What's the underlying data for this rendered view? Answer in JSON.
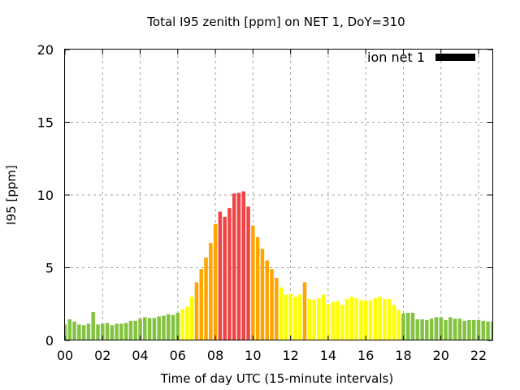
{
  "chart_data": {
    "type": "bar",
    "title": "Total I95 zenith [ppm] on NET 1, DoY=310",
    "xlabel": "Time of day UTC (15-minute intervals)",
    "ylabel": "I95 [ppm]",
    "xlim": [
      0,
      22.75
    ],
    "ylim": [
      0,
      20
    ],
    "grid": true,
    "x_ticks": [
      0,
      2,
      4,
      6,
      8,
      10,
      12,
      14,
      16,
      18,
      20,
      22
    ],
    "x_tick_labels": [
      "00",
      "02",
      "04",
      "06",
      "08",
      "10",
      "12",
      "14",
      "16",
      "18",
      "20",
      "22"
    ],
    "y_ticks": [
      0,
      5,
      10,
      15,
      20
    ],
    "y_tick_labels": [
      "0",
      "5",
      "10",
      "15",
      "20"
    ],
    "legend": {
      "label": "ion net 1",
      "position": "top-right",
      "swatch_color": "#000000"
    },
    "interval_hours": 0.25,
    "series": [
      {
        "name": "ion net 1",
        "values": [
          1.1,
          1.45,
          1.3,
          1.1,
          1.05,
          1.15,
          1.95,
          1.1,
          1.15,
          1.2,
          1.05,
          1.15,
          1.15,
          1.2,
          1.35,
          1.35,
          1.5,
          1.6,
          1.55,
          1.55,
          1.65,
          1.7,
          1.8,
          1.75,
          1.9,
          2.15,
          2.3,
          3.0,
          4.0,
          4.9,
          5.7,
          6.7,
          8.0,
          8.85,
          8.5,
          9.1,
          10.1,
          10.15,
          10.25,
          9.2,
          7.9,
          7.1,
          6.3,
          5.5,
          4.9,
          4.3,
          3.65,
          3.15,
          3.2,
          3.0,
          3.15,
          4.0,
          2.85,
          2.8,
          2.9,
          3.15,
          2.5,
          2.65,
          2.7,
          2.45,
          2.85,
          3.0,
          2.9,
          2.75,
          2.75,
          2.75,
          2.9,
          3.0,
          2.85,
          2.85,
          2.45,
          2.1,
          1.85,
          1.9,
          1.9,
          1.45,
          1.45,
          1.4,
          1.5,
          1.6,
          1.6,
          1.4,
          1.6,
          1.5,
          1.5,
          1.35,
          1.4,
          1.4,
          1.4,
          1.35,
          1.3,
          1.3
        ],
        "levels": [
          "g",
          "g",
          "g",
          "g",
          "g",
          "g",
          "g",
          "g",
          "g",
          "g",
          "g",
          "g",
          "g",
          "g",
          "g",
          "g",
          "g",
          "g",
          "g",
          "g",
          "g",
          "g",
          "g",
          "g",
          "g",
          "y",
          "y",
          "y",
          "o",
          "o",
          "o",
          "o",
          "o",
          "r",
          "r",
          "r",
          "r",
          "r",
          "r",
          "r",
          "o",
          "o",
          "o",
          "o",
          "o",
          "o",
          "y",
          "y",
          "y",
          "y",
          "y",
          "o",
          "y",
          "y",
          "y",
          "y",
          "y",
          "y",
          "y",
          "y",
          "y",
          "y",
          "y",
          "y",
          "y",
          "y",
          "y",
          "y",
          "y",
          "y",
          "y",
          "y",
          "g",
          "g",
          "g",
          "g",
          "g",
          "g",
          "g",
          "g",
          "g",
          "g",
          "g",
          "g",
          "g",
          "g",
          "g",
          "g",
          "g",
          "g",
          "g",
          "g"
        ]
      }
    ],
    "level_colors": {
      "g": "#84c341",
      "y": "#ffff00",
      "o": "#ffa500",
      "r": "#ee4444"
    }
  }
}
